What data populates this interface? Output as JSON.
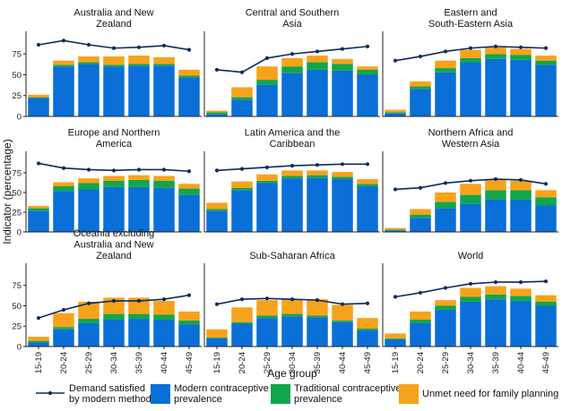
{
  "chart_data": {
    "type": "bar",
    "layout": "small-multiples-stacked-bar-with-line",
    "xlabel": "Age group",
    "ylabel": "Indicator (percentage)",
    "ylim": [
      0,
      100
    ],
    "yticks": [
      0,
      25,
      50,
      75
    ],
    "categories": [
      "15-19",
      "20-24",
      "25-29",
      "30-34",
      "35-39",
      "40-44",
      "45-49"
    ],
    "colors": {
      "modern": "#0A6FD6",
      "traditional": "#12A64A",
      "unmet": "#F7A21B",
      "demand": "#0D2A5C"
    },
    "legend": {
      "demand": "Demand satisfied\nby modern methods",
      "modern": "Modern contraceptive\nprevalence",
      "traditional": "Traditional contraceptive\nprevalence",
      "unmet": "Unmet need for family planning"
    },
    "panels": [
      {
        "title": "Australia and New\nZealand",
        "modern": [
          22,
          60,
          63,
          60,
          61,
          61,
          47
        ],
        "traditional": [
          1,
          2,
          2,
          2,
          2,
          2,
          2
        ],
        "unmet": [
          3,
          5,
          7,
          10,
          10,
          8,
          7
        ],
        "demand": [
          86,
          91,
          86,
          82,
          83,
          85,
          80
        ]
      },
      {
        "title": "Central and Southern\nAsia",
        "modern": [
          3,
          20,
          38,
          52,
          56,
          55,
          50
        ],
        "traditional": [
          2,
          3,
          6,
          8,
          9,
          8,
          6
        ],
        "unmet": [
          2,
          12,
          16,
          10,
          8,
          6,
          4
        ],
        "demand": [
          56,
          53,
          70,
          75,
          78,
          81,
          84
        ]
      },
      {
        "title": "Eastern and\nSouth-Eastern Asia",
        "modern": [
          4,
          33,
          53,
          65,
          69,
          68,
          62
        ],
        "traditional": [
          1,
          3,
          5,
          5,
          6,
          6,
          5
        ],
        "unmet": [
          3,
          6,
          9,
          10,
          8,
          7,
          6
        ],
        "demand": [
          67,
          72,
          78,
          82,
          84,
          83,
          82
        ]
      },
      {
        "title": "Europe and Northern\nAmerica",
        "modern": [
          27,
          52,
          54,
          57,
          57,
          56,
          47
        ],
        "traditional": [
          3,
          6,
          8,
          8,
          9,
          9,
          8
        ],
        "unmet": [
          3,
          5,
          6,
          6,
          6,
          6,
          6
        ],
        "demand": [
          87,
          81,
          79,
          78,
          79,
          79,
          77
        ]
      },
      {
        "title": "Latin America and the\nCaribbean",
        "modern": [
          27,
          53,
          62,
          68,
          69,
          67,
          58
        ],
        "traditional": [
          2,
          3,
          3,
          3,
          3,
          3,
          3
        ],
        "unmet": [
          8,
          8,
          8,
          7,
          6,
          6,
          6
        ],
        "demand": [
          78,
          80,
          82,
          84,
          85,
          86,
          86
        ]
      },
      {
        "title": "Northern Africa and\nWestern Asia",
        "modern": [
          2,
          18,
          30,
          36,
          41,
          41,
          34
        ],
        "traditional": [
          1,
          4,
          8,
          11,
          12,
          12,
          10
        ],
        "unmet": [
          2,
          7,
          12,
          14,
          14,
          12,
          9
        ],
        "demand": [
          54,
          56,
          62,
          65,
          67,
          66,
          61
        ]
      },
      {
        "title": "Oceania excluding\nAustralia and New\nZealand",
        "modern": [
          5,
          21,
          29,
          33,
          34,
          33,
          27
        ],
        "traditional": [
          2,
          3,
          5,
          7,
          6,
          6,
          5
        ],
        "unmet": [
          5,
          17,
          21,
          20,
          20,
          17,
          11
        ],
        "demand": [
          35,
          45,
          53,
          56,
          56,
          58,
          63
        ]
      },
      {
        "title": "Sub-Saharan Africa",
        "modern": [
          10,
          28,
          35,
          37,
          36,
          30,
          20
        ],
        "traditional": [
          1,
          2,
          3,
          3,
          2,
          2,
          2
        ],
        "unmet": [
          10,
          18,
          19,
          18,
          20,
          19,
          13
        ],
        "demand": [
          52,
          58,
          59,
          58,
          57,
          52,
          53
        ]
      },
      {
        "title": "World",
        "modern": [
          9,
          29,
          45,
          55,
          58,
          56,
          50
        ],
        "traditional": [
          1,
          4,
          5,
          6,
          6,
          6,
          5
        ],
        "unmet": [
          6,
          10,
          7,
          11,
          10,
          9,
          8
        ],
        "demand": [
          61,
          66,
          72,
          77,
          79,
          79,
          80
        ]
      }
    ]
  }
}
